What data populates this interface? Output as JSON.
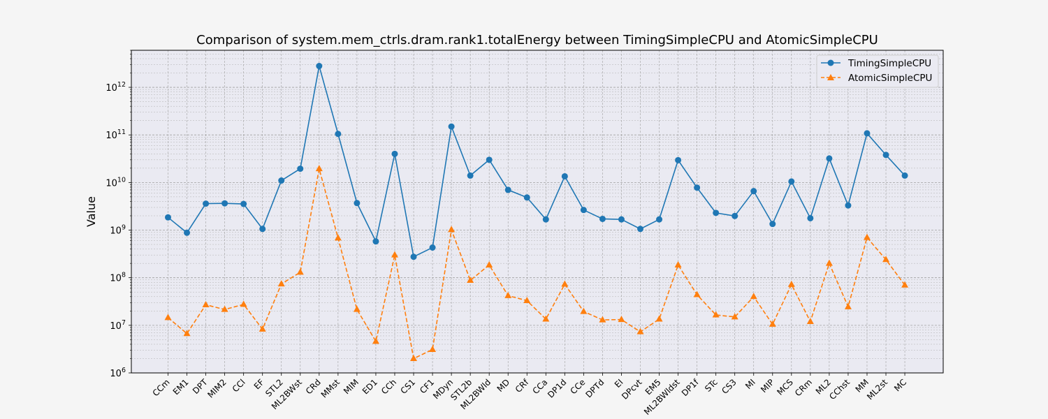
{
  "chart_data": {
    "type": "line",
    "title": "Comparison of system.mem_ctrls.dram.rank1.totalEnergy between TimingSimpleCPU and AtomicSimpleCPU",
    "xlabel": "",
    "ylabel": "Value",
    "yscale": "log",
    "ylim": [
      1000000,
      6000000000000
    ],
    "yticks": [
      {
        "value": 1000000,
        "base": "10",
        "exp": "6"
      },
      {
        "value": 10000000,
        "base": "10",
        "exp": "7"
      },
      {
        "value": 100000000,
        "base": "10",
        "exp": "8"
      },
      {
        "value": 1000000000,
        "base": "10",
        "exp": "9"
      },
      {
        "value": 10000000000,
        "base": "10",
        "exp": "10"
      },
      {
        "value": 100000000000,
        "base": "10",
        "exp": "11"
      },
      {
        "value": 1000000000000,
        "base": "10",
        "exp": "12"
      }
    ],
    "grid": true,
    "legend_position": "top-right",
    "categories": [
      "CCm",
      "EM1",
      "DPT",
      "MIM2",
      "CCl",
      "EF",
      "STL2",
      "ML2BWst",
      "CRd",
      "MMst",
      "MIM",
      "ED1",
      "CCh",
      "CS1",
      "CF1",
      "MDyn",
      "STL2b",
      "ML2BWld",
      "MD",
      "CRf",
      "CCa",
      "DP1d",
      "CCe",
      "DPTd",
      "EI",
      "DPcvt",
      "EM5",
      "ML2BWldst",
      "DP1f",
      "STc",
      "CS3",
      "MI",
      "MIP",
      "MCS",
      "CRm",
      "ML2",
      "CChst",
      "MM",
      "ML2st",
      "MC"
    ],
    "series": [
      {
        "name": "TimingSimpleCPU",
        "color": "#1f77b4",
        "marker": "circle",
        "linestyle": "solid",
        "values": [
          1850000000,
          880000000,
          3600000000,
          3650000000,
          3550000000,
          1060000000,
          11000000000,
          19500000000,
          2800000000000,
          105000000000,
          3700000000,
          580000000,
          40000000000,
          275000000,
          430000000,
          150000000000,
          14000000000,
          30000000000,
          7000000000,
          4850000000,
          1680000000,
          13500000000,
          2650000000,
          1720000000,
          1680000000,
          1060000000,
          1680000000,
          29500000000,
          7800000000,
          2300000000,
          1980000000,
          6600000000,
          1350000000,
          10500000000,
          1780000000,
          32000000000,
          3300000000,
          108000000000,
          38000000000,
          14000000000
        ]
      },
      {
        "name": "AtomicSimpleCPU",
        "color": "#ff7f0e",
        "marker": "triangle",
        "linestyle": "dashed",
        "values": [
          14500000,
          6700000,
          27000000,
          21500000,
          27500000,
          8300000,
          74000000,
          130000000,
          19500000000,
          680000000,
          21500000,
          4600000,
          300000000,
          2000000,
          3100000,
          1020000000,
          88000000,
          185000000,
          42000000,
          33000000,
          13500000,
          73000000,
          19500000,
          13000000,
          13200000,
          7300000,
          13500000,
          185000000,
          44000000,
          16500000,
          15000000,
          40000000,
          10500000,
          72000000,
          12000000,
          200000000,
          24500000,
          700000000,
          240000000,
          70000000
        ]
      }
    ]
  }
}
